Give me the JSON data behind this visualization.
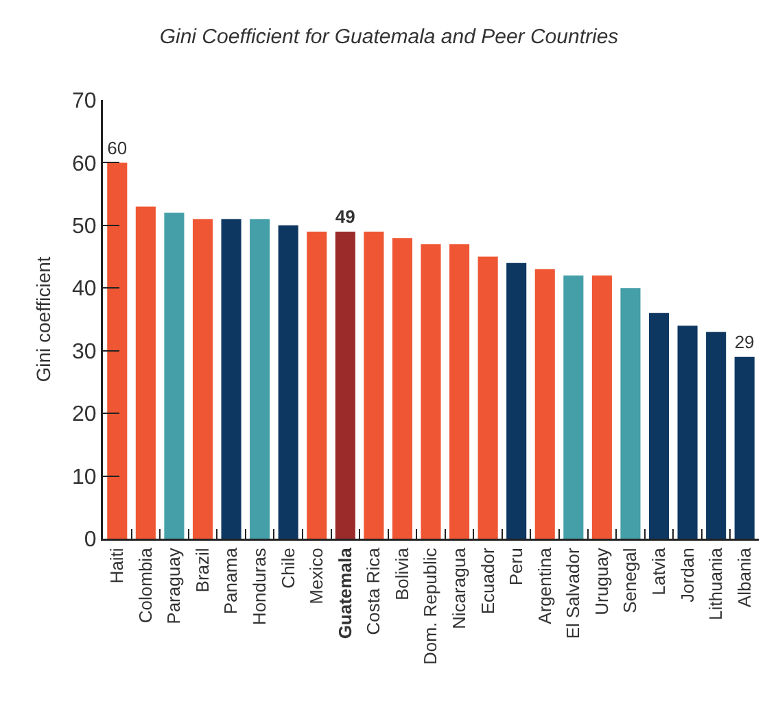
{
  "chart_data": {
    "type": "bar",
    "title": "Gini Coefficient for Guatemala and Peer Countries",
    "ylabel": "Gini coefficient",
    "categories": [
      "Haiti",
      "Colombia",
      "Paraguay",
      "Brazil",
      "Panama",
      "Honduras",
      "Chile",
      "Mexico",
      "Guatemala",
      "Costa Rica",
      "Bolivia",
      "Dom. Republic",
      "Nicaragua",
      "Ecuador",
      "Peru",
      "Argentina",
      "El Salvador",
      "Uruguay",
      "Senegal",
      "Latvia",
      "Jordan",
      "Lithuania",
      "Albania"
    ],
    "values": [
      60,
      53,
      52,
      51,
      51,
      51,
      50,
      49,
      49,
      49,
      48,
      47,
      47,
      45,
      44,
      43,
      42,
      42,
      40,
      36,
      34,
      33,
      29
    ],
    "colors": [
      "#ef5633",
      "#ef5633",
      "#449fa8",
      "#ef5633",
      "#0d3761",
      "#449fa8",
      "#0d3761",
      "#ef5633",
      "#9b2a2b",
      "#ef5633",
      "#ef5633",
      "#ef5633",
      "#ef5633",
      "#ef5633",
      "#0d3761",
      "#ef5633",
      "#449fa8",
      "#ef5633",
      "#449fa8",
      "#0d3761",
      "#0d3761",
      "#0d3761",
      "#0d3761"
    ],
    "value_labels": [
      "60",
      null,
      null,
      null,
      null,
      null,
      null,
      null,
      "49",
      null,
      null,
      null,
      null,
      null,
      null,
      null,
      null,
      null,
      null,
      null,
      null,
      null,
      "29"
    ],
    "ylim": [
      0,
      70
    ],
    "yticks": [
      0,
      10,
      20,
      30,
      40,
      50,
      60,
      70
    ]
  }
}
